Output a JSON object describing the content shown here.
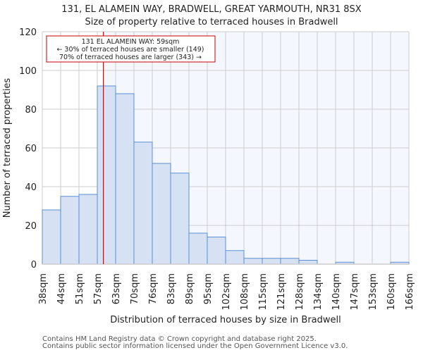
{
  "chart_data": {
    "type": "bar",
    "title": "131, EL ALAMEIN WAY, BRADWELL, GREAT YARMOUTH, NR31 8SX",
    "subtitle": "Size of property relative to terraced houses in Bradwell",
    "xlabel": "Distribution of terraced houses by size in Bradwell",
    "ylabel": "Number of terraced properties",
    "bin_edge_labels": [
      "38sqm",
      "44sqm",
      "51sqm",
      "57sqm",
      "63sqm",
      "70sqm",
      "76sqm",
      "83sqm",
      "89sqm",
      "95sqm",
      "102sqm",
      "108sqm",
      "115sqm",
      "121sqm",
      "128sqm",
      "134sqm",
      "140sqm",
      "147sqm",
      "153sqm",
      "160sqm",
      "166sqm"
    ],
    "bin_edges": [
      38,
      44,
      51,
      57,
      63,
      70,
      76,
      83,
      89,
      95,
      102,
      108,
      115,
      121,
      128,
      134,
      140,
      147,
      153,
      160,
      166
    ],
    "values": [
      28,
      35,
      36,
      92,
      88,
      63,
      52,
      47,
      16,
      14,
      7,
      3,
      3,
      3,
      2,
      0,
      1,
      0,
      0,
      1
    ],
    "ylim": [
      0,
      120
    ],
    "yticks": [
      0,
      20,
      40,
      60,
      80,
      100,
      120
    ],
    "grid": true,
    "marker": {
      "value": 59,
      "line1": "131 EL ALAMEIN WAY: 59sqm",
      "line2": "← 30% of terraced houses are smaller (149)",
      "line3": "70% of terraced houses are larger (343) →"
    },
    "colors": {
      "bar_fill": "#d6e2f3",
      "bar_stroke": "#5b8fd6",
      "marker": "#cc0000",
      "highlight_bg": "#f4f7fe",
      "grid": "#cccccc"
    }
  },
  "footer": {
    "line1": "Contains HM Land Registry data © Crown copyright and database right 2025.",
    "line2": "Contains public sector information licensed under the Open Government Licence v3.0."
  }
}
